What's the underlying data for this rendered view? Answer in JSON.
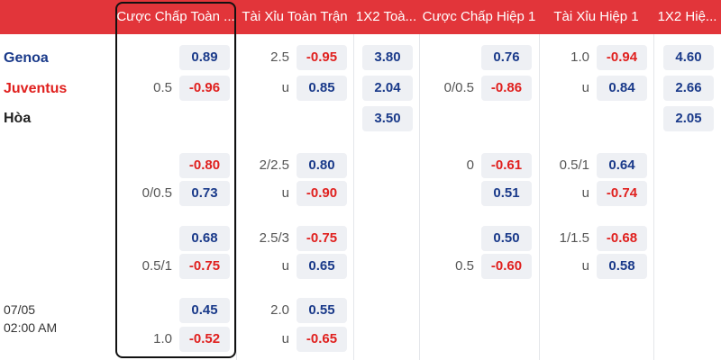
{
  "header": {
    "columns": [
      "Cược Chấp Toàn ...",
      "Tài Xỉu Toàn Trận",
      "1X2 Toà...",
      "Cược Chấp Hiệp 1",
      "Tài Xỉu Hiệp 1",
      "1X2 Hiệ..."
    ]
  },
  "match": {
    "teams": [
      "Genoa",
      "Juventus",
      "Hòa"
    ],
    "date": "07/05",
    "time": "02:00 AM"
  },
  "groups": [
    {
      "cells": [
        [
          {
            "line": null,
            "odd": "0.89"
          },
          {
            "line": "0.5",
            "odd": "-0.96"
          }
        ],
        [
          {
            "line": "2.5",
            "odd": "-0.95"
          },
          {
            "line": "u",
            "odd": "0.85"
          }
        ],
        [
          {
            "line": null,
            "odd": "3.80"
          },
          {
            "line": null,
            "odd": "2.04"
          },
          {
            "line": null,
            "odd": "3.50"
          }
        ],
        [
          {
            "line": null,
            "odd": "0.76"
          },
          {
            "line": "0/0.5",
            "odd": "-0.86"
          }
        ],
        [
          {
            "line": "1.0",
            "odd": "-0.94"
          },
          {
            "line": "u",
            "odd": "0.84"
          }
        ],
        [
          {
            "line": null,
            "odd": "4.60"
          },
          {
            "line": null,
            "odd": "2.66"
          },
          {
            "line": null,
            "odd": "2.05"
          }
        ]
      ]
    },
    {
      "cells": [
        [
          {
            "line": null,
            "odd": "-0.80"
          },
          {
            "line": "0/0.5",
            "odd": "0.73"
          }
        ],
        [
          {
            "line": "2/2.5",
            "odd": "0.80"
          },
          {
            "line": "u",
            "odd": "-0.90"
          }
        ],
        [],
        [
          {
            "line": "0",
            "odd": "-0.61"
          },
          {
            "line": null,
            "odd": "0.51"
          }
        ],
        [
          {
            "line": "0.5/1",
            "odd": "0.64"
          },
          {
            "line": "u",
            "odd": "-0.74"
          }
        ],
        []
      ]
    },
    {
      "cells": [
        [
          {
            "line": null,
            "odd": "0.68"
          },
          {
            "line": "0.5/1",
            "odd": "-0.75"
          }
        ],
        [
          {
            "line": "2.5/3",
            "odd": "-0.75"
          },
          {
            "line": "u",
            "odd": "0.65"
          }
        ],
        [],
        [
          {
            "line": null,
            "odd": "0.50"
          },
          {
            "line": "0.5",
            "odd": "-0.60"
          }
        ],
        [
          {
            "line": "1/1.5",
            "odd": "-0.68"
          },
          {
            "line": "u",
            "odd": "0.58"
          }
        ],
        []
      ]
    },
    {
      "cells": [
        [
          {
            "line": null,
            "odd": "0.45"
          },
          {
            "line": "1.0",
            "odd": "-0.52"
          }
        ],
        [
          {
            "line": "2.0",
            "odd": "0.55"
          },
          {
            "line": "u",
            "odd": "-0.65"
          }
        ],
        [],
        [],
        [],
        []
      ]
    }
  ]
}
